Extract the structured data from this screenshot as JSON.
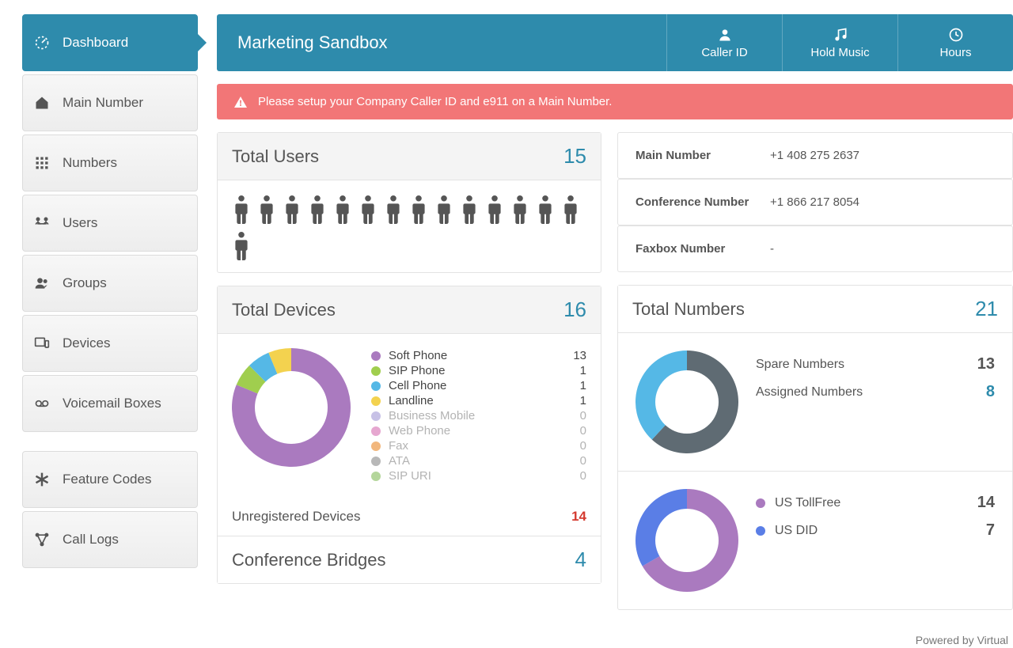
{
  "sidebar": {
    "items": [
      {
        "label": "Dashboard",
        "icon": "gauge",
        "active": true
      },
      {
        "label": "Main Number",
        "icon": "home"
      },
      {
        "label": "Numbers",
        "icon": "grid"
      },
      {
        "label": "Users",
        "icon": "users-tree"
      },
      {
        "label": "Groups",
        "icon": "group"
      },
      {
        "label": "Devices",
        "icon": "devices"
      },
      {
        "label": "Voicemail Boxes",
        "icon": "voicemail"
      }
    ],
    "extra": [
      {
        "label": "Feature Codes",
        "icon": "asterisk"
      },
      {
        "label": "Call Logs",
        "icon": "nodes"
      }
    ]
  },
  "topbar": {
    "title": "Marketing Sandbox",
    "buttons": [
      {
        "label": "Caller ID",
        "icon": "user"
      },
      {
        "label": "Hold Music",
        "icon": "music"
      },
      {
        "label": "Hours",
        "icon": "clock"
      }
    ]
  },
  "alert": {
    "text": "Please setup your Company Caller ID and e911 on a Main Number."
  },
  "usersPanel": {
    "title": "Total Users",
    "count": "15",
    "people": 15,
    "icon_color": "#555555"
  },
  "infoRows": [
    {
      "label": "Main Number",
      "value": "+1 408 275 2637"
    },
    {
      "label": "Conference Number",
      "value": "+1 866 217 8054"
    },
    {
      "label": "Faxbox Number",
      "value": "-"
    }
  ],
  "devicesPanel": {
    "title": "Total Devices",
    "count": "16",
    "donut": {
      "type": "donut",
      "size": 150,
      "inner": 46,
      "background": "#ffffff",
      "slices": [
        {
          "value": 13,
          "color": "#aa7abf"
        },
        {
          "value": 1,
          "color": "#a0ce4e"
        },
        {
          "value": 1,
          "color": "#55b8e6"
        },
        {
          "value": 1,
          "color": "#f3d24f"
        }
      ]
    },
    "legend": [
      {
        "label": "Soft Phone",
        "value": "13",
        "color": "#aa7abf",
        "dim": false
      },
      {
        "label": "SIP Phone",
        "value": "1",
        "color": "#a0ce4e",
        "dim": false
      },
      {
        "label": "Cell Phone",
        "value": "1",
        "color": "#55b8e6",
        "dim": false
      },
      {
        "label": "Landline",
        "value": "1",
        "color": "#f3d24f",
        "dim": false
      },
      {
        "label": "Business Mobile",
        "value": "0",
        "color": "#c7c1e6",
        "dim": true
      },
      {
        "label": "Web Phone",
        "value": "0",
        "color": "#e6a7d0",
        "dim": true
      },
      {
        "label": "Fax",
        "value": "0",
        "color": "#f2b77d",
        "dim": true
      },
      {
        "label": "ATA",
        "value": "0",
        "color": "#b8b8b8",
        "dim": true
      },
      {
        "label": "SIP URI",
        "value": "0",
        "color": "#b4d69b",
        "dim": true
      }
    ],
    "unregistered": {
      "label": "Unregistered Devices",
      "value": "14",
      "value_color": "#d43a2f"
    }
  },
  "conferencePanel": {
    "title": "Conference Bridges",
    "count": "4"
  },
  "numbersPanel": {
    "title": "Total Numbers",
    "count": "21",
    "sections": [
      {
        "donut": {
          "size": 130,
          "inner": 40,
          "background": "#ffffff",
          "slices": [
            {
              "value": 13,
              "color": "#5f6b73"
            },
            {
              "value": 8,
              "color": "#55b8e6"
            }
          ]
        },
        "rows": [
          {
            "label": "Spare Numbers",
            "value": "13",
            "color": "#5f6b73",
            "accent": false,
            "show_dot": false
          },
          {
            "label": "Assigned Numbers",
            "value": "8",
            "color": "#55b8e6",
            "accent": true,
            "show_dot": false
          }
        ]
      },
      {
        "donut": {
          "size": 130,
          "inner": 40,
          "background": "#ffffff",
          "slices": [
            {
              "value": 14,
              "color": "#aa7abf"
            },
            {
              "value": 7,
              "color": "#5a7ee6"
            }
          ]
        },
        "rows": [
          {
            "label": "US TollFree",
            "value": "14",
            "color": "#aa7abf",
            "accent": false,
            "show_dot": true
          },
          {
            "label": "US DID",
            "value": "7",
            "color": "#5a7ee6",
            "accent": false,
            "show_dot": true
          }
        ]
      }
    ]
  },
  "footer": "Powered by Virtual"
}
